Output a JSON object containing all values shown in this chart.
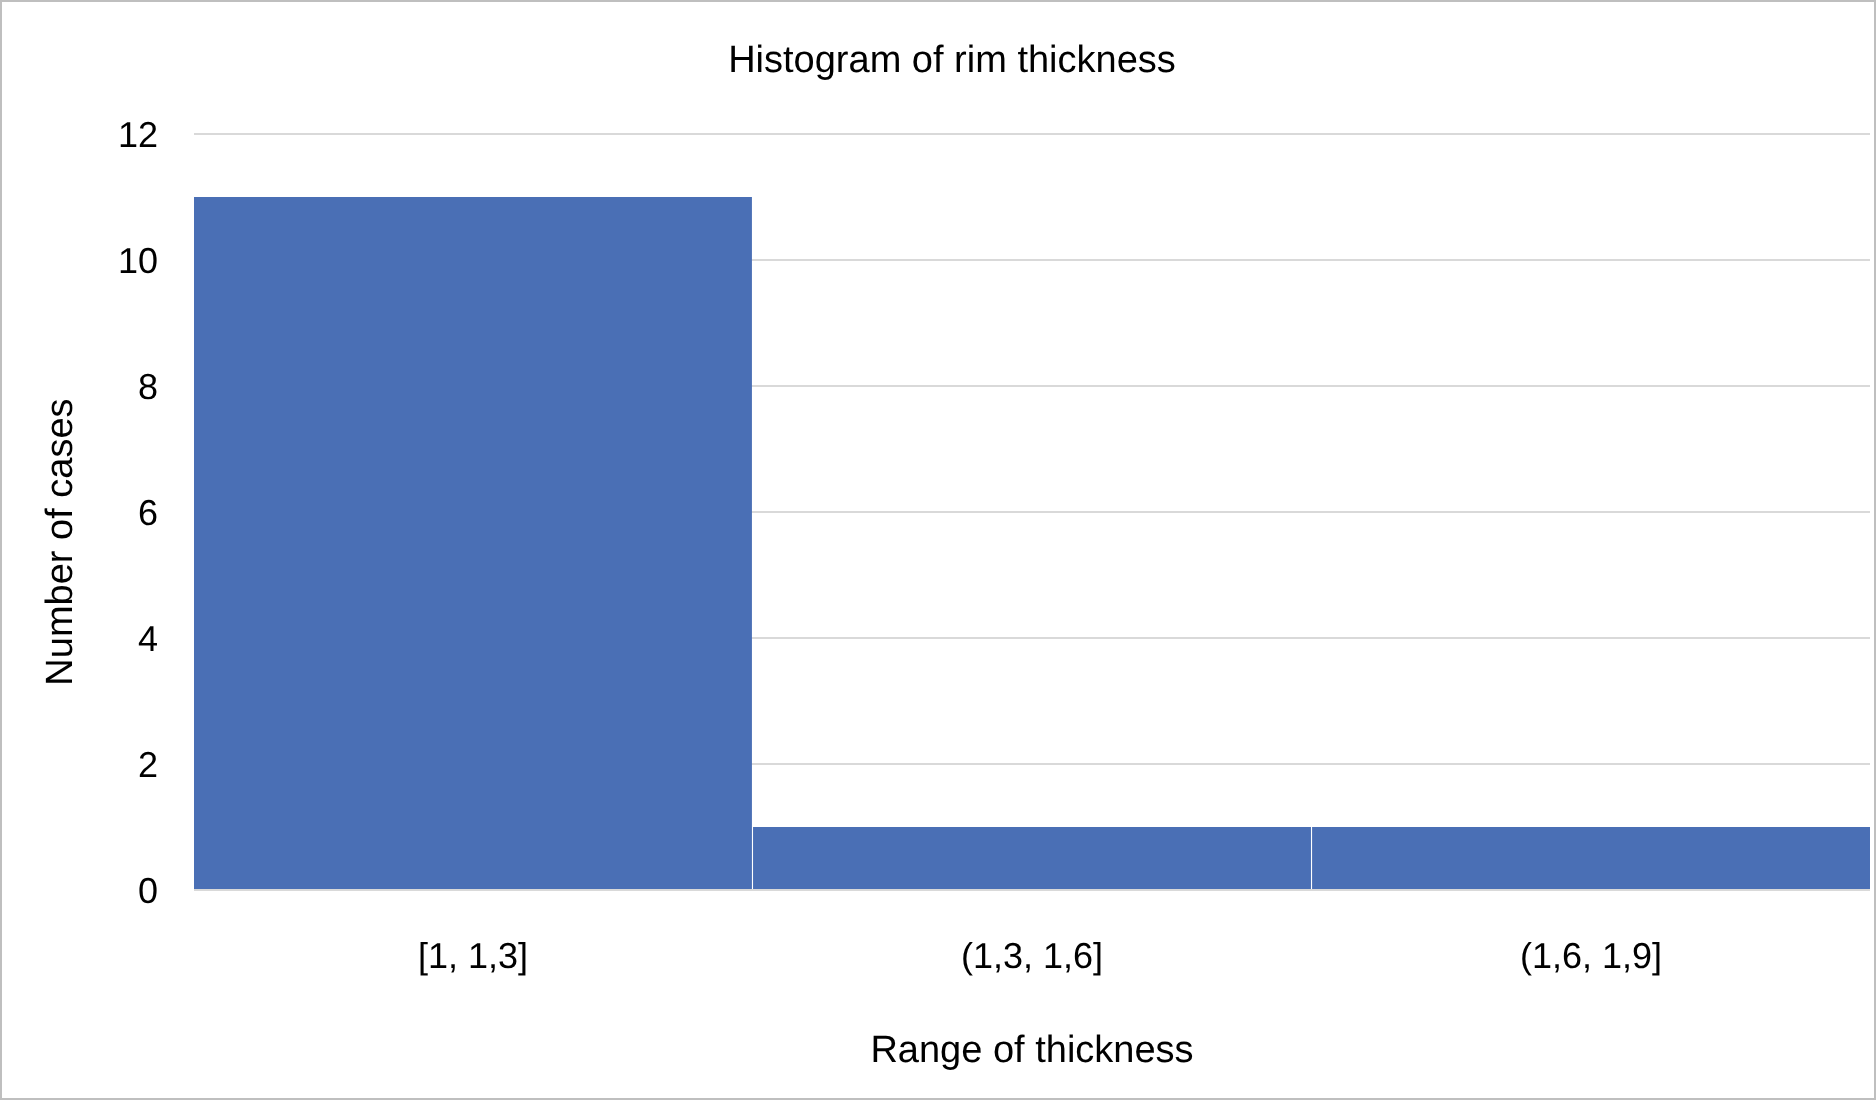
{
  "chart_data": {
    "type": "bar",
    "title": "Histogram of rim thickness",
    "xlabel": "Range of thickness",
    "ylabel": "Number of cases",
    "categories": [
      "[1, 1,3]",
      "(1,3, 1,6]",
      "(1,6, 1,9]"
    ],
    "values": [
      11,
      1,
      1
    ],
    "color": "#4a6fb5",
    "ylim": [
      0,
      12
    ],
    "yticks": [
      0,
      2,
      4,
      6,
      8,
      10,
      12
    ],
    "grid": "y"
  }
}
